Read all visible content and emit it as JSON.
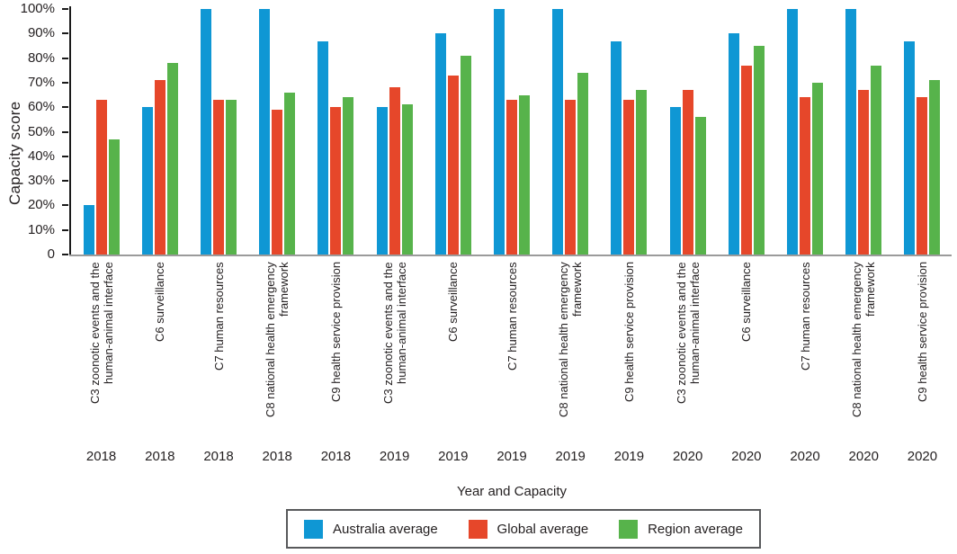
{
  "chart_data": {
    "type": "bar",
    "title": "",
    "ylabel": "Capacity score",
    "xlabel": "Year and Capacity",
    "ylim": [
      0,
      100
    ],
    "grid": false,
    "legend_position": "bottom",
    "ytick_labels": [
      "100%",
      "90%",
      "80%",
      "70%",
      "60%",
      "50%",
      "40%",
      "30%",
      "20%",
      "10%",
      "0"
    ],
    "series": [
      {
        "name": "Australia average",
        "color": "#0f97d4",
        "values": [
          20,
          60,
          100,
          100,
          87,
          60,
          90,
          100,
          100,
          87,
          60,
          90,
          100,
          100,
          87
        ]
      },
      {
        "name": "Global average",
        "color": "#e6472a",
        "values": [
          63,
          71,
          63,
          59,
          60,
          68,
          73,
          63,
          63,
          63,
          67,
          77,
          64,
          67,
          64
        ]
      },
      {
        "name": "Region average",
        "color": "#57b34b",
        "values": [
          47,
          78,
          63,
          66,
          64,
          61,
          81,
          65,
          74,
          67,
          56,
          85,
          70,
          77,
          71
        ]
      }
    ],
    "categories": [
      {
        "capacity_lines": [
          "C3 zoonotic events and the",
          "human-animal interface"
        ],
        "year": "2018"
      },
      {
        "capacity_lines": [
          "C6 surveillance"
        ],
        "year": "2018"
      },
      {
        "capacity_lines": [
          "C7 human resources"
        ],
        "year": "2018"
      },
      {
        "capacity_lines": [
          "C8 national health emergency",
          "framework"
        ],
        "year": "2018"
      },
      {
        "capacity_lines": [
          "C9 health service provision"
        ],
        "year": "2018"
      },
      {
        "capacity_lines": [
          "C3 zoonotic events and the",
          "human-animal interface"
        ],
        "year": "2019"
      },
      {
        "capacity_lines": [
          "C6 surveillance"
        ],
        "year": "2019"
      },
      {
        "capacity_lines": [
          "C7 human resources"
        ],
        "year": "2019"
      },
      {
        "capacity_lines": [
          "C8 national health emergency",
          "framework"
        ],
        "year": "2019"
      },
      {
        "capacity_lines": [
          "C9 health service provision"
        ],
        "year": "2019"
      },
      {
        "capacity_lines": [
          "C3 zoonotic events and the",
          "human-animal interface"
        ],
        "year": "2020"
      },
      {
        "capacity_lines": [
          "C6 surveillance"
        ],
        "year": "2020"
      },
      {
        "capacity_lines": [
          "C7 human resources"
        ],
        "year": "2020"
      },
      {
        "capacity_lines": [
          "C8 national health emergency",
          "framework"
        ],
        "year": "2020"
      },
      {
        "capacity_lines": [
          "C9 health service provision"
        ],
        "year": "2020"
      }
    ]
  }
}
